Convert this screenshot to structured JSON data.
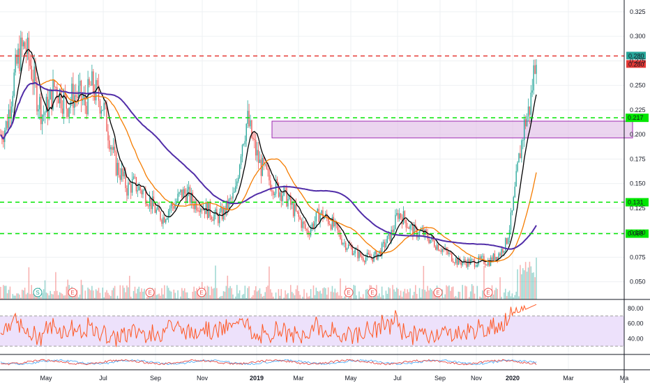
{
  "chart_data": {
    "type": "candlestick",
    "y_ticks": [
      "0.325",
      "0.300",
      "0.275",
      "0.250",
      "0.225",
      "0.200",
      "0.175",
      "0.150",
      "0.125",
      "0.100",
      "0.075",
      "0.050"
    ],
    "y_tick_values": [
      0.325,
      0.3,
      0.275,
      0.25,
      0.225,
      0.2,
      0.175,
      0.15,
      0.125,
      0.1,
      0.075,
      0.05
    ],
    "ylim": [
      0.032,
      0.337
    ],
    "x_ticks": [
      "May",
      "Jul",
      "Sep",
      "Nov",
      "2019",
      "Mar",
      "May",
      "Jul",
      "Sep",
      "Nov",
      "2020",
      "Mar",
      "Ma"
    ],
    "x_tick_bold": [
      false,
      false,
      false,
      false,
      true,
      false,
      false,
      false,
      false,
      false,
      true,
      false,
      false
    ],
    "n_bars": 400,
    "closes": [
      0.2,
      0.21,
      0.25,
      0.28,
      0.29,
      0.27,
      0.24,
      0.22,
      0.23,
      0.25,
      0.24,
      0.23,
      0.24,
      0.24,
      0.23,
      0.25,
      0.24,
      0.23,
      0.2,
      0.17,
      0.16,
      0.145,
      0.15,
      0.145,
      0.14,
      0.13,
      0.12,
      0.115,
      0.125,
      0.13,
      0.14,
      0.14,
      0.13,
      0.13,
      0.125,
      0.12,
      0.115,
      0.12,
      0.13,
      0.14,
      0.19,
      0.215,
      0.19,
      0.17,
      0.16,
      0.15,
      0.145,
      0.14,
      0.13,
      0.12,
      0.11,
      0.1,
      0.11,
      0.12,
      0.115,
      0.11,
      0.1,
      0.09,
      0.085,
      0.08,
      0.075,
      0.075,
      0.075,
      0.08,
      0.09,
      0.1,
      0.12,
      0.115,
      0.105,
      0.1,
      0.1,
      0.095,
      0.09,
      0.085,
      0.08,
      0.075,
      0.07,
      0.07,
      0.07,
      0.07,
      0.072,
      0.07,
      0.075,
      0.08,
      0.09,
      0.12,
      0.17,
      0.21,
      0.23,
      0.29
    ],
    "key_prices": {
      "last": "0.280",
      "marker": "0.280"
    },
    "levels": [
      {
        "price": 0.28,
        "style": "red-dashed",
        "label": "0.280"
      },
      {
        "price": 0.217,
        "style": "green-dashed",
        "label": "0.217"
      },
      {
        "price": 0.131,
        "style": "green-dashed",
        "label": "0.131"
      },
      {
        "price": 0.099,
        "style": "green-dashed",
        "label": "0.099"
      }
    ],
    "zone": {
      "from_price": 0.2,
      "to_price": 0.218,
      "color": "#e1bee7"
    },
    "moving_averages": [
      {
        "color": "#000000",
        "length": "short"
      },
      {
        "color": "#f57c00",
        "length": "medium"
      },
      {
        "color": "#512da8",
        "length": "long"
      }
    ],
    "event_markers": [
      {
        "label": "S",
        "type": "split"
      },
      {
        "label": "E",
        "type": "earnings"
      },
      {
        "label": "E",
        "type": "earnings"
      },
      {
        "label": "E",
        "type": "earnings"
      },
      {
        "label": "E",
        "type": "earnings"
      },
      {
        "label": "E",
        "type": "earnings"
      },
      {
        "label": "E",
        "type": "earnings"
      },
      {
        "label": "E",
        "type": "earnings"
      }
    ],
    "rsi": {
      "ticks": [
        "80.00",
        "60.00",
        "40.00"
      ],
      "tick_values": [
        80,
        60,
        40
      ],
      "band": [
        30,
        70
      ],
      "ylim": [
        20,
        90
      ],
      "last": 84
    },
    "oscillator": {
      "series": [
        "blue",
        "red"
      ]
    },
    "colors": {
      "up": "#26a69a",
      "down": "#ef5350",
      "rsi_line": "#ff5722",
      "rsi_band": "#ede1fb"
    }
  }
}
